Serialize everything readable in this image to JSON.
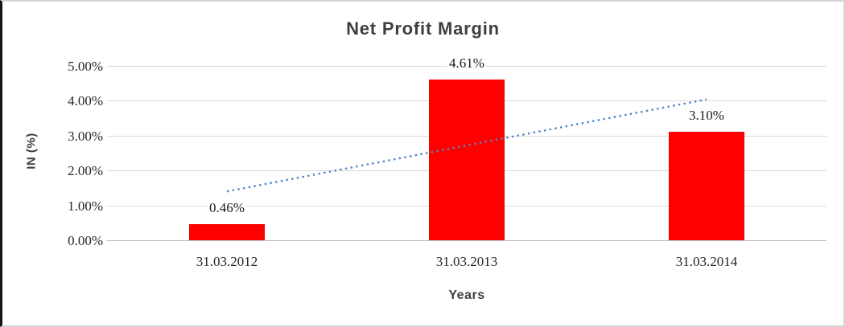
{
  "frame": {
    "background": "#FFFFFF",
    "border_left_color": "#141414",
    "border_color": "#D5D5D5"
  },
  "chart_data": {
    "type": "bar",
    "title": "Net Profit Margin",
    "xlabel": "Years",
    "ylabel": "IN (%)",
    "categories": [
      "31.03.2012",
      "31.03.2013",
      "31.03.2014"
    ],
    "values": [
      0.46,
      4.61,
      3.1
    ],
    "data_labels": [
      "0.46%",
      "4.61%",
      "3.10%"
    ],
    "ylim": [
      0,
      5
    ],
    "ytick_step": 1,
    "ytick_labels": [
      "0.00%",
      "1.00%",
      "2.00%",
      "3.00%",
      "4.00%",
      "5.00%"
    ],
    "grid": "horizontal-only",
    "legend": "none",
    "bar_color": "#FF0000",
    "gridline_color": "#D9D9D9",
    "axis_line_color": "#C0C0C0",
    "tick_text_color": "#262626",
    "title_color": "#3F3F3F",
    "trendline": {
      "type": "linear",
      "style": "dotted",
      "color": "#4E86C4",
      "start_value": 1.4,
      "end_value": 4.04
    }
  }
}
